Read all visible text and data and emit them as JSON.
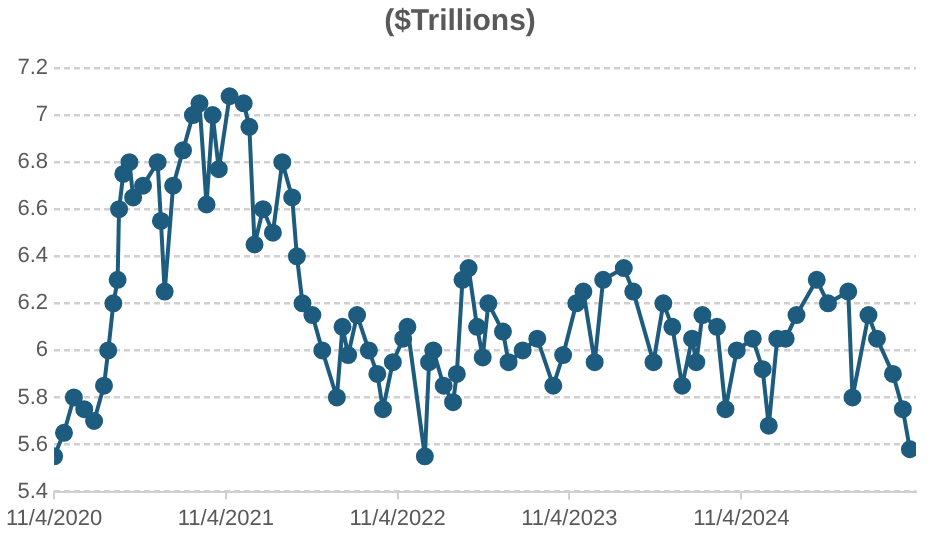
{
  "chart_data": {
    "type": "line",
    "title": "($Trillions)",
    "x": [
      "2020-11-04",
      "2020-11-25",
      "2020-12-16",
      "2021-01-07",
      "2021-01-28",
      "2021-02-18",
      "2021-02-27",
      "2021-03-10",
      "2021-03-19",
      "2021-03-22",
      "2021-03-31",
      "2021-04-13",
      "2021-04-21",
      "2021-05-12",
      "2021-06-12",
      "2021-06-19",
      "2021-06-27",
      "2021-07-15",
      "2021-08-05",
      "2021-08-26",
      "2021-09-09",
      "2021-09-24",
      "2021-10-07",
      "2021-10-20",
      "2021-11-12",
      "2021-12-12",
      "2021-12-24",
      "2022-01-04",
      "2022-01-22",
      "2022-02-12",
      "2022-03-04",
      "2022-03-25",
      "2022-04-04",
      "2022-04-16",
      "2022-05-07",
      "2022-05-28",
      "2022-06-28",
      "2022-07-10",
      "2022-07-22",
      "2022-08-10",
      "2022-09-04",
      "2022-09-22",
      "2022-10-04",
      "2022-10-25",
      "2022-11-16",
      "2022-11-25",
      "2023-01-01",
      "2023-01-10",
      "2023-01-19",
      "2023-02-10",
      "2023-03-02",
      "2023-03-10",
      "2023-03-22",
      "2023-04-04",
      "2023-04-22",
      "2023-05-04",
      "2023-05-16",
      "2023-06-16",
      "2023-06-28",
      "2023-07-28",
      "2023-08-28",
      "2023-10-01",
      "2023-10-22",
      "2023-11-19",
      "2023-12-04",
      "2023-12-28",
      "2024-01-15",
      "2024-02-28",
      "2024-03-19",
      "2024-05-01",
      "2024-05-22",
      "2024-06-10",
      "2024-07-01",
      "2024-07-22",
      "2024-07-31",
      "2024-08-13",
      "2024-09-13",
      "2024-10-01",
      "2024-10-25",
      "2024-11-28",
      "2024-12-19",
      "2025-01-01",
      "2025-01-19",
      "2025-02-06",
      "2025-03-01",
      "2025-04-13",
      "2025-05-07",
      "2025-06-19",
      "2025-06-28",
      "2025-08-01",
      "2025-08-19",
      "2025-09-22",
      "2025-10-13",
      "2025-10-28"
    ],
    "series": [
      {
        "color": "#1d5c7e",
        "values": [
          5.55,
          5.65,
          5.8,
          5.75,
          5.7,
          5.85,
          6.0,
          6.2,
          6.3,
          6.6,
          6.75,
          6.8,
          6.65,
          6.7,
          6.8,
          6.55,
          6.25,
          6.7,
          6.85,
          7.0,
          7.05,
          6.62,
          7.0,
          6.77,
          7.08,
          7.05,
          6.95,
          6.45,
          6.6,
          6.5,
          6.8,
          6.65,
          6.4,
          6.2,
          6.15,
          6.0,
          5.8,
          6.1,
          5.98,
          6.15,
          6.0,
          5.9,
          5.75,
          5.95,
          6.05,
          6.1,
          5.55,
          5.95,
          6.0,
          5.85,
          5.78,
          5.9,
          6.3,
          6.35,
          6.1,
          5.97,
          6.2,
          6.08,
          5.95,
          6.0,
          6.05,
          5.85,
          5.98,
          6.2,
          6.25,
          5.95,
          6.3,
          6.35,
          6.25,
          5.95,
          6.2,
          6.1,
          5.85,
          6.05,
          5.95,
          6.15,
          6.1,
          5.75,
          6.0,
          6.05,
          5.92,
          5.68,
          6.05,
          6.05,
          6.15,
          6.3,
          6.2,
          6.25,
          5.8,
          6.15,
          6.05,
          5.9,
          5.75,
          5.58
        ]
      }
    ],
    "xlim": [
      "2020-11-04",
      "2025-11-10"
    ],
    "xticks": [
      {
        "value": "2020-11-04",
        "label": "11/4/2020"
      },
      {
        "value": "2021-11-04",
        "label": "11/4/2021"
      },
      {
        "value": "2022-11-04",
        "label": "11/4/2022"
      },
      {
        "value": "2023-11-04",
        "label": "11/4/2023"
      },
      {
        "value": "2024-11-04",
        "label": "11/4/2024"
      }
    ],
    "ylim": [
      5.4,
      7.2
    ],
    "yticks": [
      5.4,
      5.6,
      5.8,
      6,
      6.2,
      6.4,
      6.6,
      6.8,
      7,
      7.2
    ],
    "grid": "y",
    "legend": false,
    "marker": "circle",
    "line_style": "solid"
  }
}
